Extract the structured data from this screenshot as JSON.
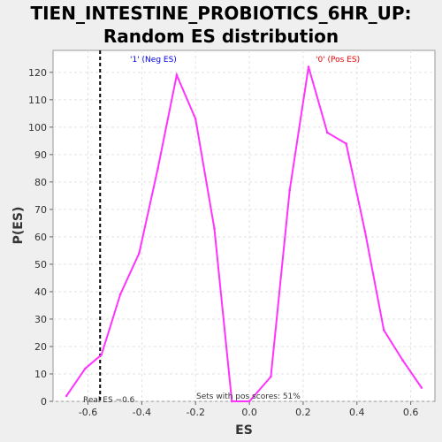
{
  "chart_data": {
    "type": "line",
    "title": "TIEN_INTESTINE_PROBIOTICS_6HR_UP:",
    "subtitle": "Random ES distribution",
    "xlabel": "ES",
    "ylabel": "P(ES)",
    "xlim": [
      -0.73,
      0.69
    ],
    "ylim": [
      0,
      128
    ],
    "xticks": [
      -0.6,
      -0.4,
      -0.2,
      0.0,
      0.2,
      0.4,
      0.6
    ],
    "xtick_labels": [
      "-0.6",
      "-0.4",
      "-0.2",
      "0.0",
      "0.2",
      "0.4",
      "0.6"
    ],
    "yticks": [
      0,
      10,
      20,
      30,
      40,
      50,
      60,
      70,
      80,
      90,
      100,
      110,
      120
    ],
    "ytick_labels": [
      "0",
      "10",
      "20",
      "30",
      "40",
      "50",
      "60",
      "70",
      "80",
      "90",
      "100",
      "110",
      "120"
    ],
    "grid": true,
    "series": [
      {
        "color": "#ff33ff",
        "x": [
          -0.68,
          -0.61,
          -0.55,
          -0.48,
          -0.41,
          -0.34,
          -0.27,
          -0.2,
          -0.13,
          -0.065,
          0.0,
          0.08,
          0.15,
          0.22,
          0.29,
          0.36,
          0.43,
          0.5,
          0.57,
          0.64
        ],
        "y": [
          2,
          12,
          17,
          39,
          54,
          85,
          119,
          103,
          63,
          0,
          0,
          9,
          77,
          122,
          98,
          94,
          62,
          26,
          15,
          5
        ]
      }
    ],
    "real_es": {
      "x": -0.555,
      "color": "#000000",
      "label": "Real ES −0.6"
    },
    "annotations": {
      "neg_label": "'1' (Neg ES)",
      "neg_color": "#0000ee",
      "pos_label": "'0' (Pos ES)",
      "pos_color": "#ee0000",
      "pos_scores_text": "Sets with pos scores: 51%"
    }
  }
}
